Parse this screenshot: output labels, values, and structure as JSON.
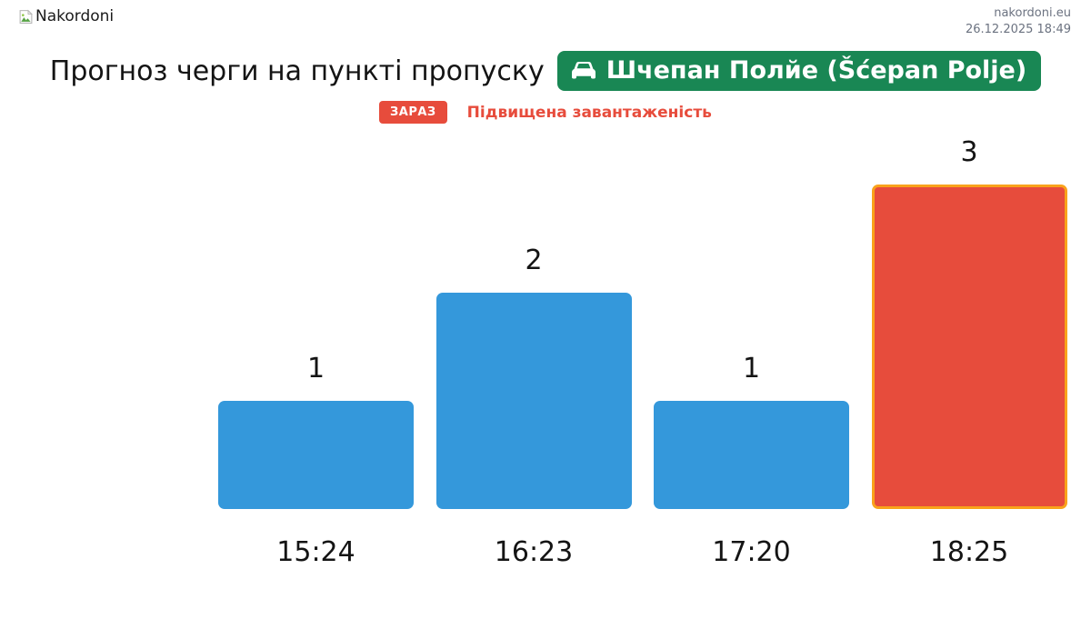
{
  "header": {
    "logo_text": "Nakordoni",
    "logo_icon": "broken-image-icon",
    "site": "nakordoni.eu",
    "datetime": "26.12.2025 18:49"
  },
  "title": {
    "text": "Прогноз черги на пункті пропуску",
    "checkpoint": "Шчепан Полйе (Šćepan Polje)",
    "checkpoint_icon": "car-icon",
    "badge_color": "#198754"
  },
  "status": {
    "badge": "ЗАРАЗ",
    "message": "Підвищена завантаженість",
    "color": "#e74c3c"
  },
  "chart_data": {
    "type": "bar",
    "title": "Прогноз черги на пункті пропуску Шчепан Полйе (Šćepan Polje)",
    "categories": [
      "15:24",
      "16:23",
      "17:20",
      "18:25"
    ],
    "values": [
      1,
      2,
      1,
      3
    ],
    "bar_colors": [
      "#3498db",
      "#3498db",
      "#3498db",
      "#e74c3c"
    ],
    "highlight": {
      "index": 3,
      "border_color": "#f9a21b"
    },
    "xlabel": "",
    "ylabel": "",
    "ylim": [
      0,
      3
    ],
    "grid": false,
    "value_labels": true,
    "legend": false
  }
}
